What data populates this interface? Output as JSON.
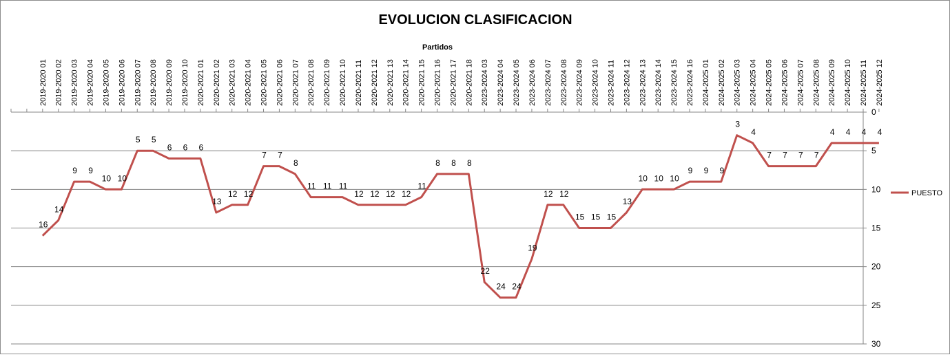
{
  "chart_data": {
    "type": "line",
    "title": "EVOLUCION CLASIFICACION",
    "xlabel": "Partidos",
    "ylabel": "",
    "y_reversed": true,
    "x_axis_position": "top",
    "y_axis_position": "right",
    "ylim": [
      0,
      30
    ],
    "yticks": [
      0,
      5,
      10,
      15,
      20,
      25,
      30
    ],
    "grid": "horizontal",
    "legend_position": "right",
    "line_color": "#c0504d",
    "categories": [
      "2019-2020 01",
      "2019-2020 02",
      "2019-2020 03",
      "2019-2020 04",
      "2019-2020 05",
      "2019-2020 06",
      "2019-2020 07",
      "2019-2020 08",
      "2019-2020 09",
      "2019-2020 10",
      "2020-2021 01",
      "2020-2021 02",
      "2020-2021 03",
      "2020-2021 04",
      "2020-2021 05",
      "2020-2021 06",
      "2020-2021 07",
      "2020-2021 08",
      "2020-2021 09",
      "2020-2021 10",
      "2020-2021 11",
      "2020-2021 12",
      "2020-2021 13",
      "2020-2021 14",
      "2020-2021 15",
      "2020-2021 16",
      "2020-2021 17",
      "2020-2021 18",
      "2023-2024 03",
      "2023-2024 04",
      "2023-2024 05",
      "2023-2024 06",
      "2023-2024 07",
      "2023-2024 08",
      "2023-2024 09",
      "2023-2024 10",
      "2023-2024 11",
      "2023-2024 12",
      "2023-2024 13",
      "2023-2024 14",
      "2023-2024 15",
      "2023-2024 16",
      "2024-2025 01",
      "2024-2025 02",
      "2024-2025 03",
      "2024-2025 04",
      "2024-2025 05",
      "2024-2025 06",
      "2024-2025 07",
      "2024-2025 08",
      "2024-2025 09",
      "2024-2025 10",
      "2024-2025 11",
      "2024-2025 12"
    ],
    "series": [
      {
        "name": "PUESTO",
        "values": [
          16,
          14,
          9,
          9,
          10,
          10,
          5,
          5,
          6,
          6,
          6,
          13,
          12,
          12,
          7,
          7,
          8,
          11,
          11,
          11,
          12,
          12,
          12,
          12,
          11,
          8,
          8,
          8,
          22,
          24,
          24,
          19,
          12,
          12,
          15,
          15,
          15,
          13,
          10,
          10,
          10,
          9,
          9,
          9,
          3,
          4,
          7,
          7,
          7,
          7,
          4,
          4,
          4,
          4
        ]
      }
    ]
  }
}
